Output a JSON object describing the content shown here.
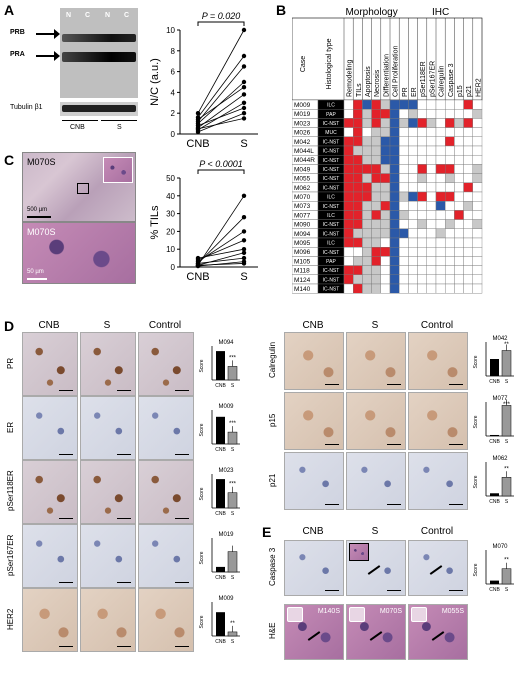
{
  "panel_labels": {
    "a": "A",
    "b": "B",
    "c": "C",
    "d": "D",
    "e": "E"
  },
  "panelA": {
    "blot_headers": [
      "N",
      "C",
      "N",
      "C"
    ],
    "band_labels": [
      "PRB",
      "PRA"
    ],
    "loading_label": "Tubulin β1",
    "group_labels": [
      "CNB",
      "S"
    ]
  },
  "panelC": {
    "micro_label_top": "M070S",
    "micro_label_bottom": "M070S",
    "scale_top": "500 µm",
    "scale_bottom": "50 µm"
  },
  "chart_data": [
    {
      "type": "line",
      "title": "",
      "xlabel": "",
      "ylabel": "N/C (a.u.)",
      "categories": [
        "CNB",
        "S"
      ],
      "ylim": [
        0,
        10
      ],
      "yticks": [
        0,
        2,
        4,
        6,
        8,
        10
      ],
      "pvalue": "P = 0.020",
      "series": [
        {
          "values": [
            0.2,
            2.0
          ]
        },
        {
          "values": [
            0.4,
            3.0
          ]
        },
        {
          "values": [
            0.6,
            3.8
          ]
        },
        {
          "values": [
            0.8,
            2.5
          ]
        },
        {
          "values": [
            1.0,
            5.0
          ]
        },
        {
          "values": [
            1.2,
            6.5
          ]
        },
        {
          "values": [
            1.4,
            4.5
          ]
        },
        {
          "values": [
            1.6,
            7.5
          ]
        },
        {
          "values": [
            2.0,
            10.0
          ]
        },
        {
          "values": [
            0.5,
            1.5
          ]
        }
      ]
    },
    {
      "type": "line",
      "title": "",
      "xlabel": "",
      "ylabel": "% TILs",
      "categories": [
        "CNB",
        "S"
      ],
      "ylim": [
        0,
        50
      ],
      "yticks": [
        0,
        10,
        20,
        30,
        40,
        50
      ],
      "pvalue": "P < 0.0001",
      "series": [
        {
          "values": [
            1,
            40
          ]
        },
        {
          "values": [
            2,
            28
          ]
        },
        {
          "values": [
            3,
            20
          ]
        },
        {
          "values": [
            4,
            15
          ]
        },
        {
          "values": [
            5,
            10
          ]
        },
        {
          "values": [
            1,
            8
          ]
        },
        {
          "values": [
            2,
            5
          ]
        },
        {
          "values": [
            0.5,
            3
          ]
        },
        {
          "values": [
            1,
            2
          ]
        }
      ]
    }
  ],
  "panelB": {
    "case_header": "Case",
    "histo_header": "Histological type",
    "group_headers": [
      "Morphology",
      "IHC"
    ],
    "columns": [
      "Remodeling",
      "TILs",
      "Apoptosis",
      "Necrosis",
      "Differentiation",
      "Cell Proliferation",
      "PR",
      "ER",
      "pSer118ER",
      "pSer167ER",
      "Calregulin",
      "Caspase 3",
      "p15",
      "p21",
      "HER2"
    ],
    "rows": [
      {
        "case": "M009",
        "type": "ILC",
        "cells": "wrbrgbbbwwwwwrw"
      },
      {
        "case": "M019",
        "type": "PAP",
        "cells": "wrgrrbwgwwwwwwg"
      },
      {
        "case": "M023",
        "type": "IC-NST",
        "cells": "rrgrgbgbrgwrgrw"
      },
      {
        "case": "M026",
        "type": "MUC",
        "cells": "wrwggbwwwwwwwww"
      },
      {
        "case": "M042",
        "type": "IC-NST",
        "cells": "rrggbbwwwwwrwww"
      },
      {
        "case": "M044L",
        "type": "IC-NST",
        "cells": "rgggbbwwwwwwwww"
      },
      {
        "case": "M044R",
        "type": "IC-NST",
        "cells": "rrggbbwwwwwwwww"
      },
      {
        "case": "M049",
        "type": "IC-NST",
        "cells": "rrrrgbwwrwrrwwg"
      },
      {
        "case": "M055",
        "type": "IC-NST",
        "cells": "rrgrrbwwgwwgwwg"
      },
      {
        "case": "M062",
        "type": "IC-NST",
        "cells": "rrrggbwwwwwwwrw"
      },
      {
        "case": "M070",
        "type": "ILC",
        "cells": "rrrggbgbrwrrwww"
      },
      {
        "case": "M073",
        "type": "IC-NST",
        "cells": "rrggrbwwwwbwwgw"
      },
      {
        "case": "M077",
        "type": "ILC",
        "cells": "rrgrgbgwwwwwrww"
      },
      {
        "case": "M090",
        "type": "IC-NST",
        "cells": "rrgggbwwgwwgwwg"
      },
      {
        "case": "M094",
        "type": "IC-NST",
        "cells": "rggggbbwwwgwwww"
      },
      {
        "case": "M095",
        "type": "ILC",
        "cells": "rrggwbwwwwwwwww"
      },
      {
        "case": "M096",
        "type": "IC-NST",
        "cells": "wwgrrbwwwwwwwww"
      },
      {
        "case": "M105",
        "type": "PAP",
        "cells": "wggrwbwwwwwwwww"
      },
      {
        "case": "M118",
        "type": "IC-NST",
        "cells": "rrggwbwwwwwwwww"
      },
      {
        "case": "M124",
        "type": "IC-NST",
        "cells": "rgggwbwwwwwwwww"
      },
      {
        "case": "M140",
        "type": "IC-NST",
        "cells": "wrggwbwwwwwwwww"
      }
    ],
    "legend": [
      {
        "color": "#2b59a8",
        "symbol": "↓"
      },
      {
        "color": "#c8c8c8",
        "symbol": "="
      },
      {
        "color": "#e2222a",
        "symbol": "↑"
      },
      {
        "color": "#ffffff",
        "symbol": "ND"
      }
    ]
  },
  "panelD": {
    "col_headers": [
      "CNB",
      "S",
      "Control"
    ],
    "rows": [
      {
        "marker": "PR",
        "case": "M094",
        "score_label": "Score",
        "sig": "***",
        "cnb": 85,
        "s": 40
      },
      {
        "marker": "ER",
        "case": "M009",
        "score_label": "Score",
        "sig": "***",
        "cnb": 80,
        "s": 35
      },
      {
        "marker": "pSer118ER",
        "case": "M023",
        "score_label": "Score",
        "sig": "***",
        "cnb": 85,
        "s": 45
      },
      {
        "marker": "pSer167ER",
        "case": "M019",
        "score_label": "Score",
        "sig": "",
        "cnb": 15,
        "s": 60
      },
      {
        "marker": "HER2",
        "case": "M009",
        "score_label": "Score",
        "sig": "**",
        "cnb": 70,
        "s": 12
      }
    ],
    "bar_categories": [
      "CNB",
      "S"
    ]
  },
  "panelD2": {
    "col_headers": [
      "CNB",
      "S",
      "Control"
    ],
    "rows": [
      {
        "marker": "Calregulin",
        "case": "M042",
        "score_label": "Score",
        "sig": "**",
        "cnb": 50,
        "s": 75
      },
      {
        "marker": "p15",
        "case": "M077",
        "score_label": "Score",
        "sig": "***",
        "cnb": 3,
        "s": 90
      },
      {
        "marker": "p21",
        "case": "M062",
        "score_label": "Score",
        "sig": "**",
        "cnb": 8,
        "s": 55
      }
    ],
    "bar_categories": [
      "CNB",
      "S"
    ]
  },
  "panelE": {
    "col_headers": [
      "CNB",
      "S",
      "Control"
    ],
    "marker": "Caspase 3",
    "case": "M070",
    "score_label": "Score",
    "sig": "**",
    "cnb": 10,
    "s": 45,
    "he_label": "H&E",
    "he_cases": [
      "M140S",
      "M070S",
      "M055S"
    ],
    "bar_categories": [
      "CNB",
      "S"
    ]
  }
}
